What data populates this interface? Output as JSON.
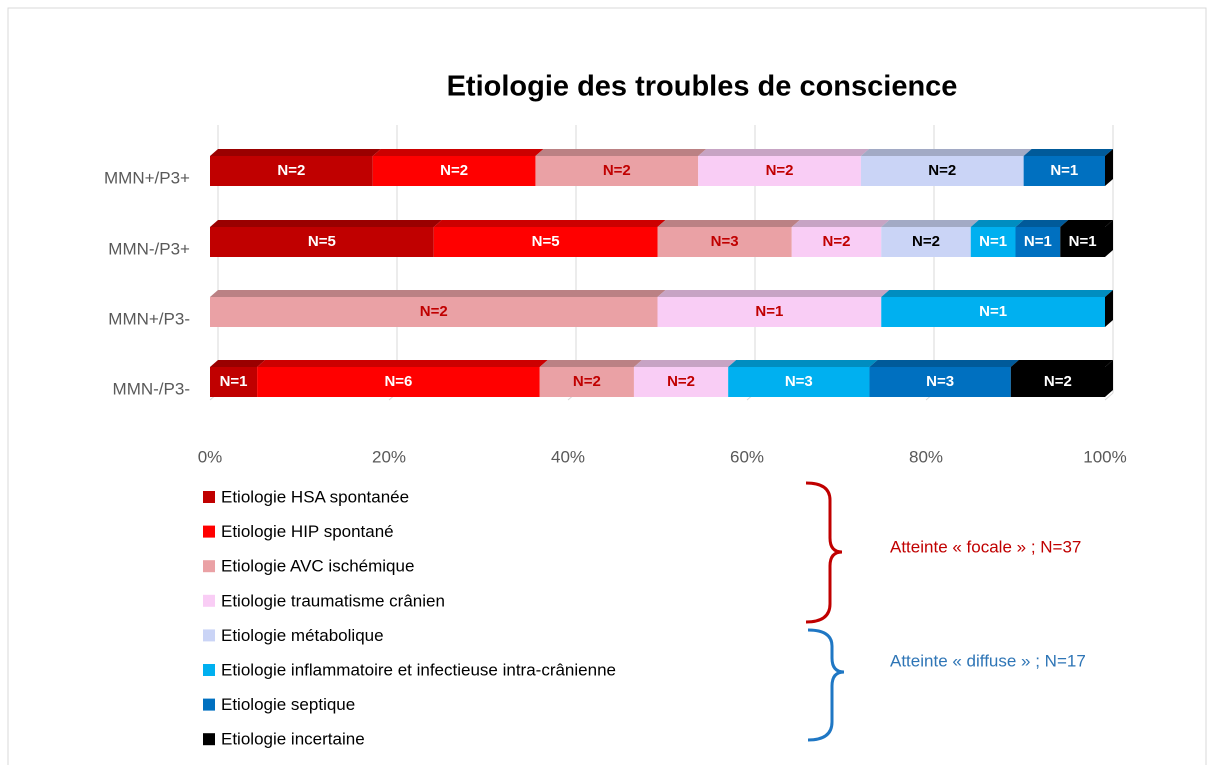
{
  "chart_data": {
    "type": "bar",
    "orientation": "horizontal",
    "stack": "percent",
    "title": "Etiologie des troubles de conscience",
    "categories": [
      "MMN+/P3+",
      "MMN-/P3+",
      "MMN+/P3-",
      "MMN-/P3-"
    ],
    "series": [
      {
        "name": "Etiologie HSA spontanée",
        "color": "#c00000",
        "label_color": "#ffffff",
        "values": [
          2,
          5,
          0,
          1
        ],
        "value_labels": [
          "N=2",
          "N=5",
          null,
          "N=1"
        ]
      },
      {
        "name": "Etiologie HIP spontané",
        "color": "#ff0000",
        "label_color": "#ffffff",
        "values": [
          2,
          5,
          0,
          6
        ],
        "value_labels": [
          "N=2",
          "N=5",
          null,
          "N=6"
        ]
      },
      {
        "name": "Etiologie AVC ischémique",
        "color": "#eaa1a5",
        "label_color": "#c00000",
        "values": [
          2,
          3,
          2,
          2
        ],
        "value_labels": [
          "N=2",
          "N=3",
          "N=2",
          "N=2"
        ]
      },
      {
        "name": "Etiologie traumatisme crânien",
        "color": "#f9cdf5",
        "label_color": "#c00000",
        "values": [
          2,
          2,
          1,
          2
        ],
        "value_labels": [
          "N=2",
          "N=2",
          "N=1",
          "N=2"
        ]
      },
      {
        "name": "Etiologie métabolique",
        "color": "#cad4f6",
        "label_color": "#000000",
        "values": [
          2,
          2,
          0,
          0
        ],
        "value_labels": [
          "N=2",
          "N=2",
          null,
          null
        ]
      },
      {
        "name": "Etiologie inflammatoire et infectieuse intra-crânienne",
        "color": "#00b0f0",
        "label_color": "#ffffff",
        "values": [
          0,
          1,
          1,
          3
        ],
        "value_labels": [
          null,
          "N=1",
          "N=1",
          "N=3"
        ]
      },
      {
        "name": "Etiologie septique",
        "color": "#0070c0",
        "label_color": "#ffffff",
        "values": [
          1,
          1,
          0,
          3
        ],
        "value_labels": [
          "N=1",
          "N=1",
          null,
          "N=3"
        ]
      },
      {
        "name": "Etiologie incertaine",
        "color": "#000000",
        "label_color": "#ffffff",
        "values": [
          0,
          1,
          0,
          2
        ],
        "value_labels": [
          null,
          "N=1",
          null,
          "N=2"
        ]
      }
    ],
    "xlim": [
      0,
      100
    ],
    "xticks": [
      {
        "value": 0,
        "label": "0%"
      },
      {
        "value": 20,
        "label": "20%"
      },
      {
        "value": 40,
        "label": "40%"
      },
      {
        "value": 60,
        "label": "60%"
      },
      {
        "value": 80,
        "label": "80%"
      },
      {
        "value": 100,
        "label": "100%"
      }
    ],
    "grid": true,
    "annotations": [
      "Atteinte « focale » ; N=37",
      "Atteinte « diffuse » ; N=17"
    ]
  }
}
